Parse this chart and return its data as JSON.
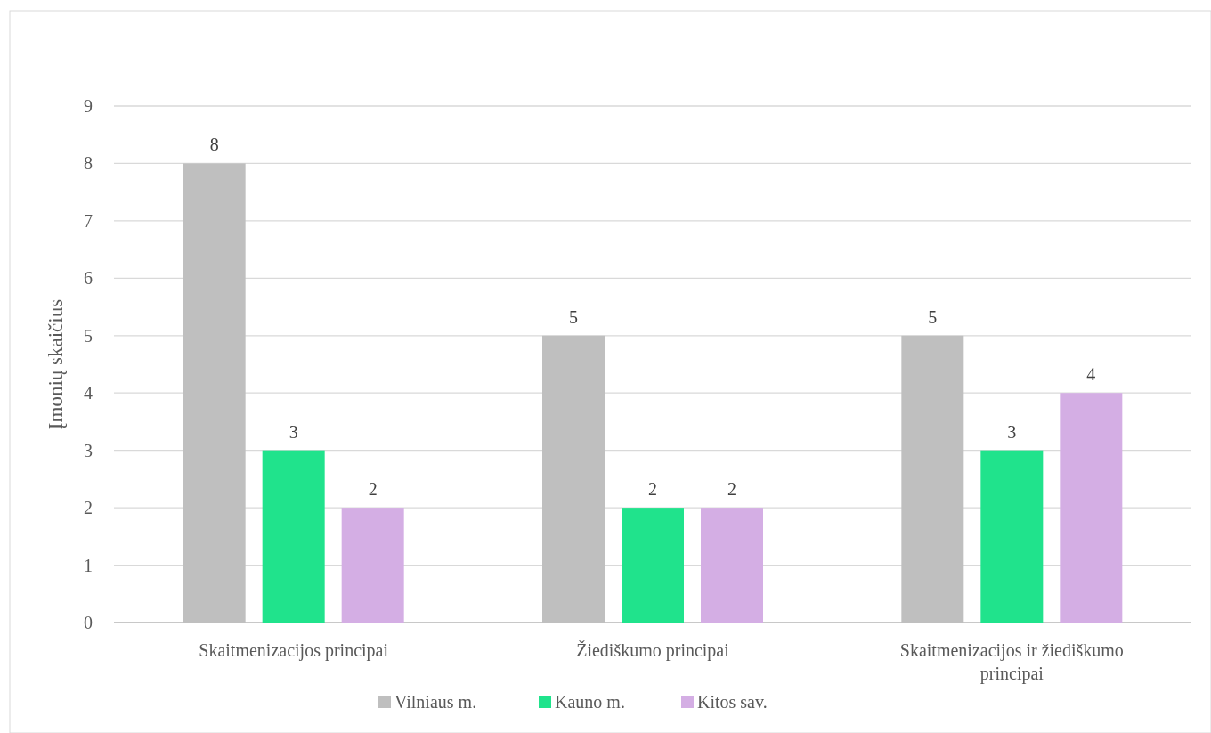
{
  "chart_data": {
    "type": "bar",
    "ylabel": "Įmonių skaičius",
    "categories": [
      "Skaitmenizacijos principai",
      "Žiediškumo principai",
      "Skaitmenizacijos ir žiediškumo principai"
    ],
    "series": [
      {
        "name": "Vilniaus m.",
        "color": "#bfbfbf",
        "values": [
          8,
          5,
          5
        ]
      },
      {
        "name": "Kauno m.",
        "color": "#20e38c",
        "values": [
          3,
          2,
          3
        ]
      },
      {
        "name": "Kitos sav.",
        "color": "#d4aee4",
        "values": [
          2,
          2,
          4
        ]
      }
    ],
    "ylim": [
      0,
      9
    ],
    "yticks": [
      0,
      1,
      2,
      3,
      4,
      5,
      6,
      7,
      8,
      9
    ],
    "grid": "y",
    "legend": "bottom",
    "data_labels": true
  }
}
